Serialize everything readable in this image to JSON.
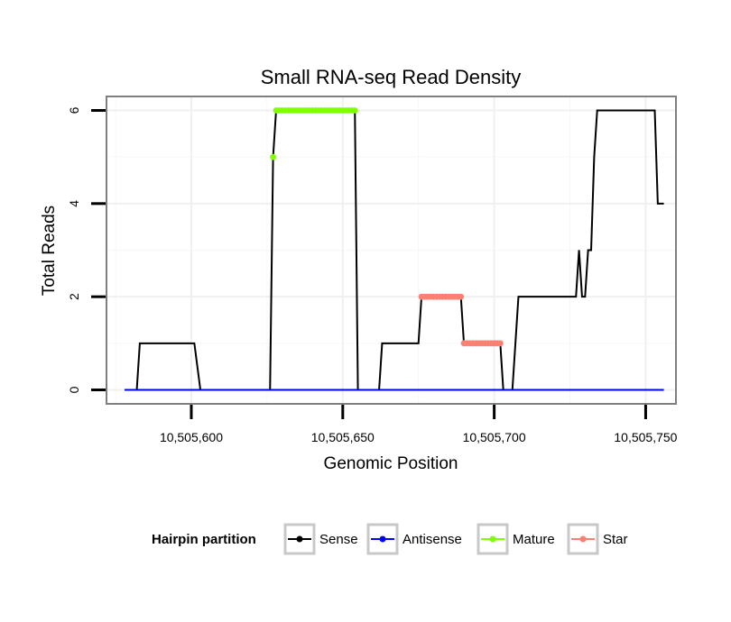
{
  "chart_data": {
    "type": "line",
    "title": "Small RNA-seq Read Density",
    "xlabel": "Genomic Position",
    "ylabel": "Total Reads",
    "xlim": [
      10505572,
      10505760
    ],
    "ylim": [
      -0.3,
      6.3
    ],
    "x_ticks": [
      10505600,
      10505650,
      10505700,
      10505750
    ],
    "x_tick_labels": [
      "10,505,600",
      "10,505,650",
      "10,505,700",
      "10,505,750"
    ],
    "y_ticks": [
      0,
      2,
      4,
      6
    ],
    "y_tick_labels": [
      "0",
      "2",
      "4",
      "6"
    ],
    "grid": true,
    "legend": {
      "title": "Hairpin partition",
      "position": "bottom",
      "entries": [
        {
          "label": "Sense",
          "color": "#000000"
        },
        {
          "label": "Antisense",
          "color": "#0000ff"
        },
        {
          "label": "Mature",
          "color": "#7fff00"
        },
        {
          "label": "Star",
          "color": "#fa8072"
        }
      ]
    },
    "series": [
      {
        "name": "Sense",
        "style": "line",
        "color": "#000000",
        "x": [
          10505578,
          10505582,
          10505583,
          10505601,
          10505603,
          10505626,
          10505627,
          10505628,
          10505654,
          10505655,
          10505662,
          10505663,
          10505675,
          10505676,
          10505689,
          10505690,
          10505702,
          10505703,
          10505706,
          10505708,
          10505727,
          10505728,
          10505729,
          10505730,
          10505731,
          10505732,
          10505733,
          10505734,
          10505753,
          10505754,
          10505756
        ],
        "y": [
          0,
          0,
          1,
          1,
          0,
          0,
          5,
          6,
          6,
          0,
          0,
          1,
          1,
          2,
          2,
          1,
          1,
          0,
          0,
          2,
          2,
          3,
          2,
          2,
          3,
          3,
          5,
          6,
          6,
          4,
          4
        ]
      },
      {
        "name": "Antisense",
        "style": "line",
        "color": "#0000ff",
        "x": [
          10505578,
          10505756
        ],
        "y": [
          0,
          0
        ]
      },
      {
        "name": "Mature",
        "style": "points",
        "color": "#7fff00",
        "x": [
          10505627,
          10505628,
          10505629,
          10505630,
          10505631,
          10505632,
          10505633,
          10505634,
          10505635,
          10505636,
          10505637,
          10505638,
          10505639,
          10505640,
          10505641,
          10505642,
          10505643,
          10505644,
          10505645,
          10505646,
          10505647,
          10505648,
          10505649,
          10505650,
          10505651,
          10505652,
          10505653,
          10505654
        ],
        "y": [
          5,
          6,
          6,
          6,
          6,
          6,
          6,
          6,
          6,
          6,
          6,
          6,
          6,
          6,
          6,
          6,
          6,
          6,
          6,
          6,
          6,
          6,
          6,
          6,
          6,
          6,
          6,
          6
        ]
      },
      {
        "name": "Star",
        "style": "points",
        "color": "#fa8072",
        "x": [
          10505676,
          10505677,
          10505678,
          10505679,
          10505680,
          10505681,
          10505682,
          10505683,
          10505684,
          10505685,
          10505686,
          10505687,
          10505688,
          10505689,
          10505690,
          10505691,
          10505692,
          10505693,
          10505694,
          10505695,
          10505696,
          10505697,
          10505698,
          10505699,
          10505700,
          10505701,
          10505702
        ],
        "y": [
          2,
          2,
          2,
          2,
          2,
          2,
          2,
          2,
          2,
          2,
          2,
          2,
          2,
          2,
          1,
          1,
          1,
          1,
          1,
          1,
          1,
          1,
          1,
          1,
          1,
          1,
          1
        ]
      }
    ]
  }
}
